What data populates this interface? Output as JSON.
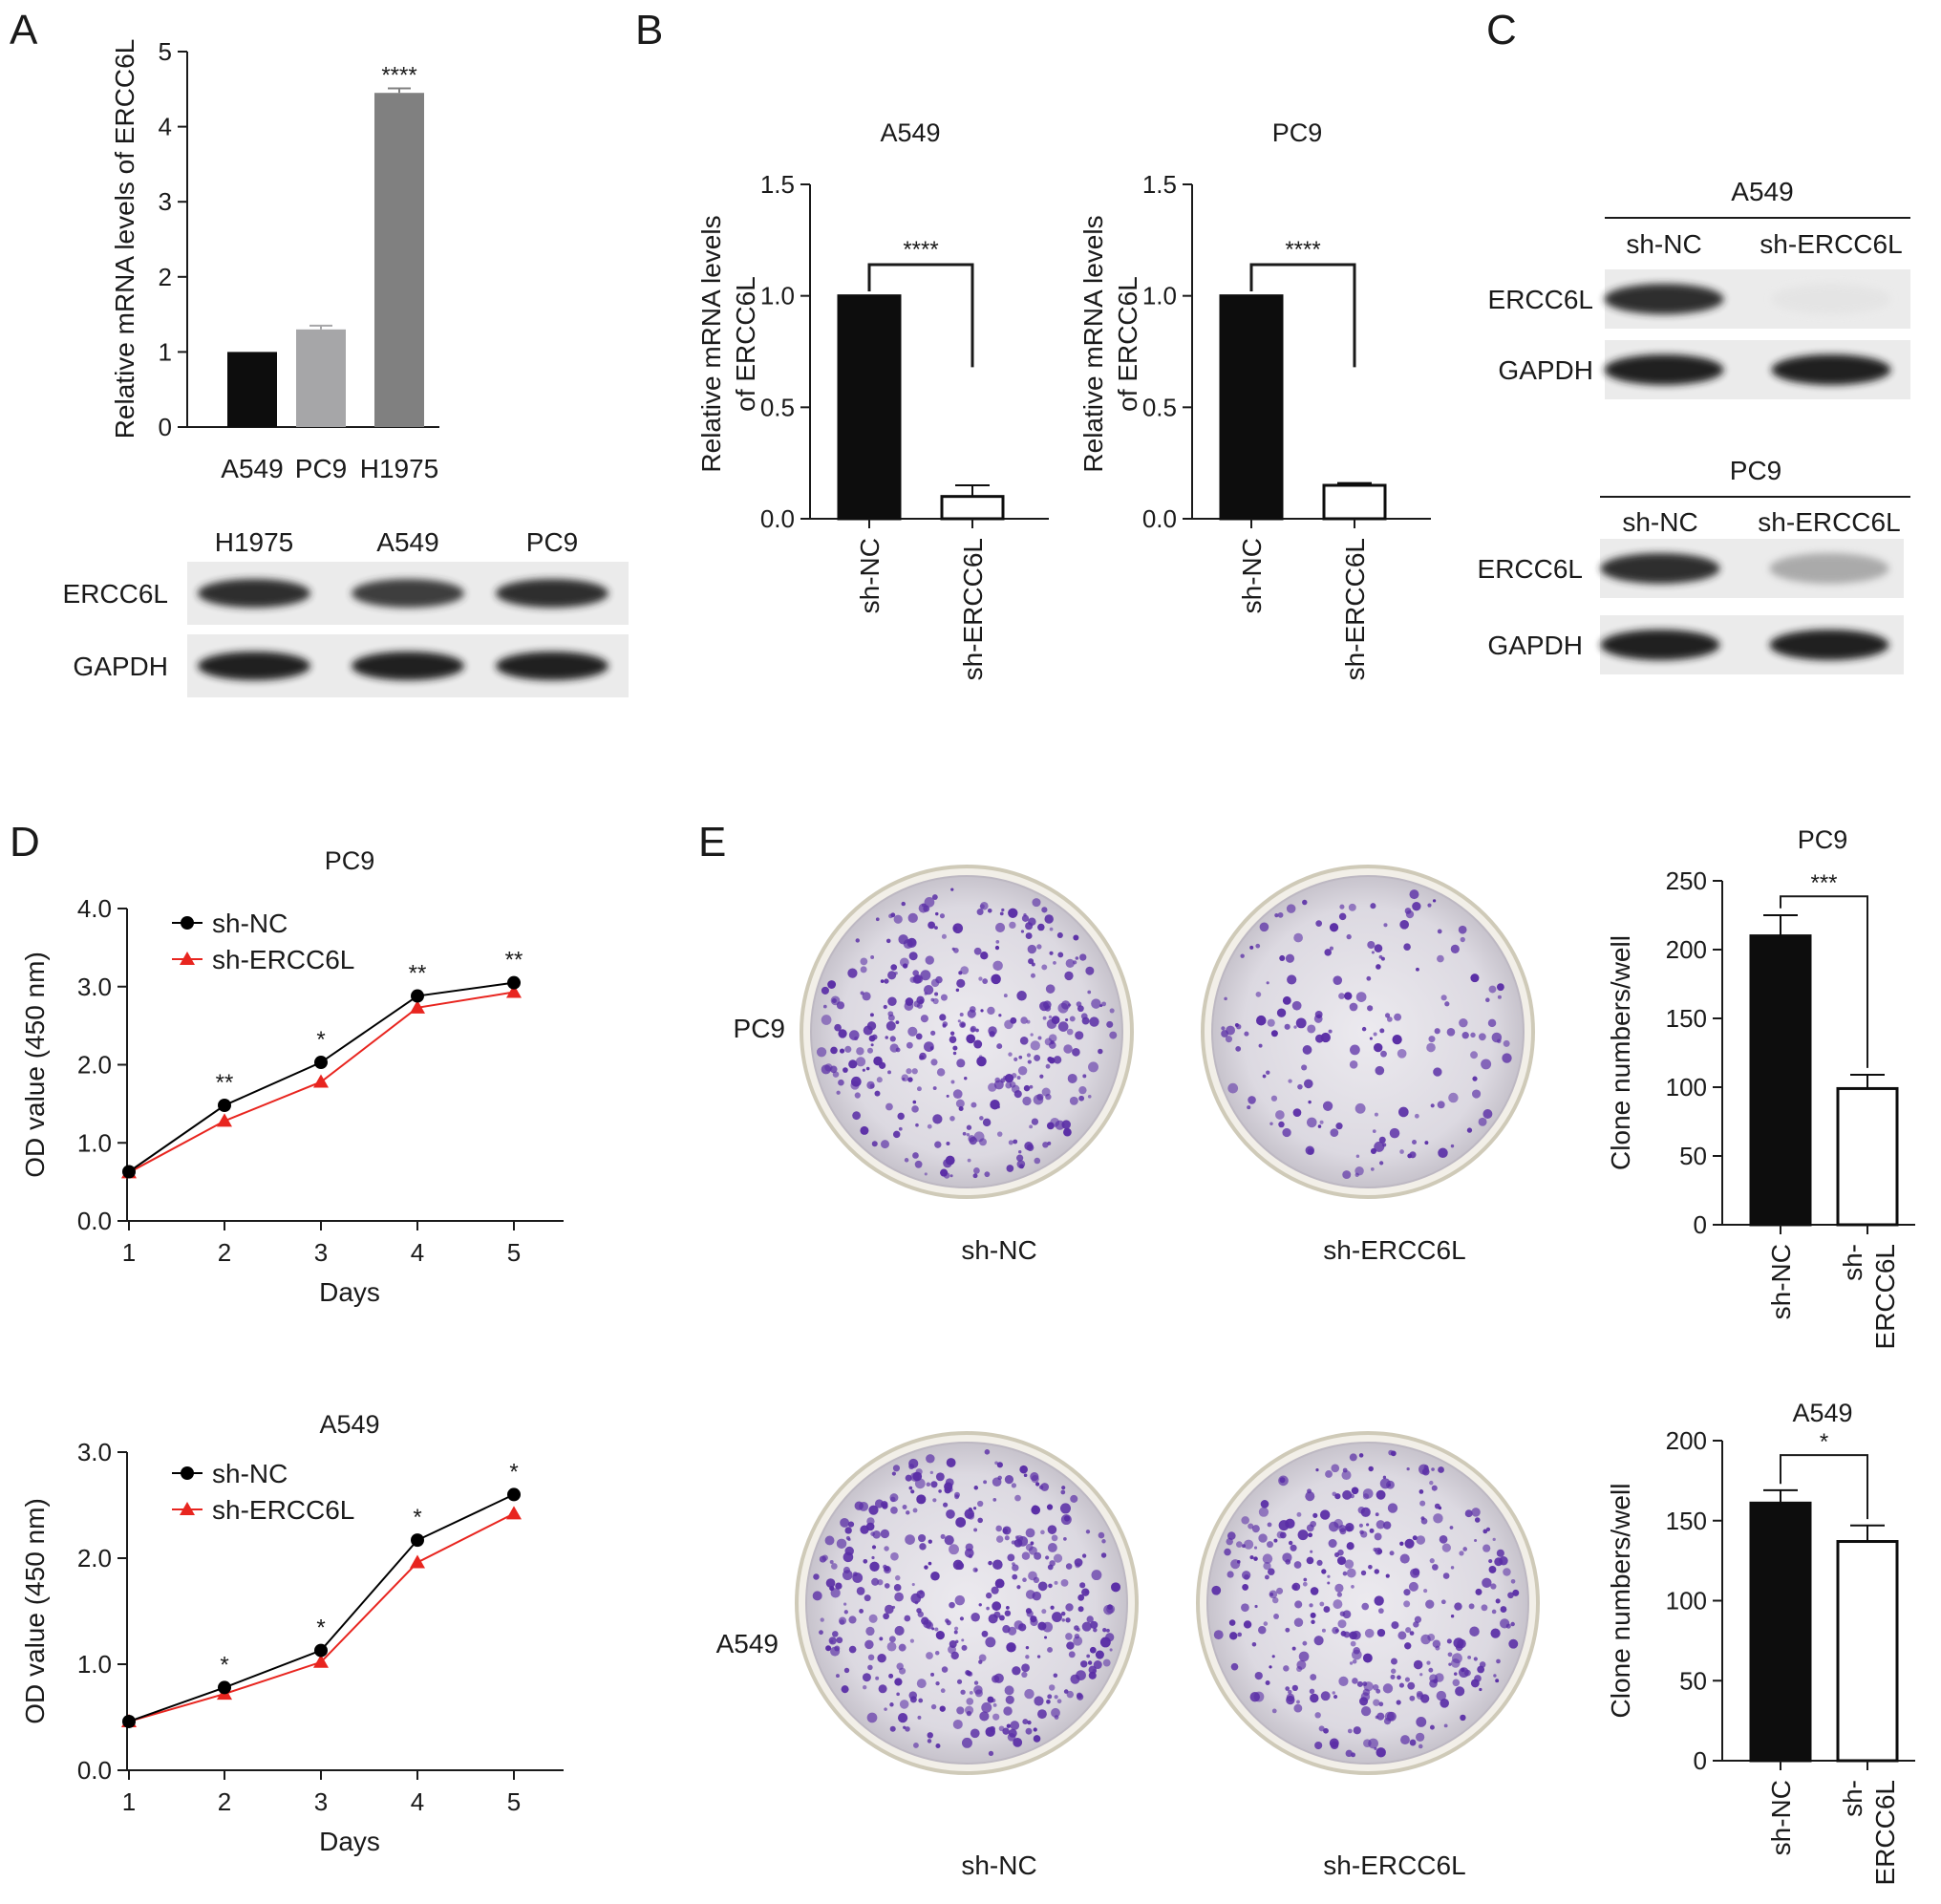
{
  "panel_letters": [
    "A",
    "B",
    "C",
    "D",
    "E"
  ],
  "chart_data": [
    {
      "id": "A-bar",
      "type": "bar",
      "categories": [
        "A549",
        "PC9",
        "H1975"
      ],
      "values": [
        1.0,
        1.3,
        4.45
      ],
      "errors": [
        0,
        0.05,
        0.06
      ],
      "colors": [
        "#0d0d0d",
        "#a6a6a8",
        "#808080"
      ],
      "significance": [
        "",
        "",
        "****"
      ],
      "title": "",
      "xlabel": "",
      "ylabel": "Relative mRNA levels of ERCC6L",
      "ylim": [
        0,
        5
      ],
      "yticks": [
        "0",
        "1",
        "2",
        "3",
        "4",
        "5"
      ]
    },
    {
      "id": "B-A549",
      "type": "bar",
      "categories": [
        "sh-NC",
        "sh-ERCC6L"
      ],
      "values": [
        1.0,
        0.1
      ],
      "errors": [
        0,
        0.05
      ],
      "fills": [
        "#0d0d0d",
        "#ffffff"
      ],
      "significance": "****",
      "title": "A549",
      "ylabel": [
        "Relative mRNA levels",
        "of ERCC6L"
      ],
      "ylim": [
        0,
        1.5
      ],
      "yticks": [
        "0.0",
        "0.5",
        "1.0",
        "1.5"
      ]
    },
    {
      "id": "B-PC9",
      "type": "bar",
      "categories": [
        "sh-NC",
        "sh-ERCC6L"
      ],
      "values": [
        1.0,
        0.15
      ],
      "errors": [
        0,
        0.01
      ],
      "fills": [
        "#0d0d0d",
        "#ffffff"
      ],
      "significance": "****",
      "title": "PC9",
      "ylabel": [
        "Relative mRNA levels",
        "of ERCC6L"
      ],
      "ylim": [
        0,
        1.5
      ],
      "yticks": [
        "0.0",
        "0.5",
        "1.0",
        "1.5"
      ]
    },
    {
      "id": "D-PC9",
      "type": "line",
      "title": "PC9",
      "xlabel": "Days",
      "ylabel": "OD value (450 nm)",
      "x": [
        1,
        2,
        3,
        4,
        5
      ],
      "xticks": [
        "1",
        "2",
        "3",
        "4",
        "5"
      ],
      "ylim": [
        0,
        4.0
      ],
      "yticks": [
        "0.0",
        "1.0",
        "2.0",
        "3.0",
        "4.0"
      ],
      "series": [
        {
          "name": "sh-NC",
          "values": [
            0.63,
            1.48,
            2.03,
            2.88,
            3.05
          ],
          "color": "#000000",
          "marker": "circle"
        },
        {
          "name": "sh-ERCC6L",
          "values": [
            0.62,
            1.28,
            1.78,
            2.73,
            2.93
          ],
          "color": "#e8251f",
          "marker": "triangle"
        }
      ],
      "significance": [
        "",
        "**",
        "*",
        "**",
        "**"
      ],
      "legend": "top-left"
    },
    {
      "id": "D-A549",
      "type": "line",
      "title": "A549",
      "xlabel": "Days",
      "ylabel": "OD value (450 nm)",
      "x": [
        1,
        2,
        3,
        4,
        5
      ],
      "xticks": [
        "1",
        "2",
        "3",
        "4",
        "5"
      ],
      "ylim": [
        0,
        3.0
      ],
      "yticks": [
        "0.0",
        "1.0",
        "2.0",
        "3.0"
      ],
      "series": [
        {
          "name": "sh-NC",
          "values": [
            0.46,
            0.78,
            1.13,
            2.17,
            2.6
          ],
          "color": "#000000",
          "marker": "circle"
        },
        {
          "name": "sh-ERCC6L",
          "values": [
            0.46,
            0.72,
            1.02,
            1.96,
            2.42
          ],
          "color": "#e8251f",
          "marker": "triangle"
        }
      ],
      "significance": [
        "",
        "*",
        "*",
        "*",
        "*"
      ],
      "legend": "top-left"
    },
    {
      "id": "E-PC9",
      "type": "bar",
      "categories": [
        "sh-NC",
        "sh-ERCC6L"
      ],
      "category_lines": [
        [
          "sh-NC"
        ],
        [
          "sh-",
          "ERCC6L"
        ]
      ],
      "values": [
        210,
        99
      ],
      "errors": [
        15,
        10
      ],
      "fills": [
        "#0d0d0d",
        "#ffffff"
      ],
      "significance": "***",
      "title": "PC9",
      "ylabel": "Clone numbers/well",
      "ylim": [
        0,
        250
      ],
      "yticks": [
        "0",
        "50",
        "100",
        "150",
        "200",
        "250"
      ]
    },
    {
      "id": "E-A549",
      "type": "bar",
      "categories": [
        "sh-NC",
        "sh-ERCC6L"
      ],
      "category_lines": [
        [
          "sh-NC"
        ],
        [
          "sh-",
          "ERCC6L"
        ]
      ],
      "values": [
        161,
        137
      ],
      "errors": [
        8,
        10
      ],
      "fills": [
        "#0d0d0d",
        "#ffffff"
      ],
      "significance": "*",
      "title": "A549",
      "ylabel": "Clone numbers/well",
      "ylim": [
        0,
        200
      ],
      "yticks": [
        "0",
        "50",
        "100",
        "150",
        "200"
      ]
    }
  ],
  "western_blots": {
    "A": {
      "lanes": [
        "H1975",
        "A549",
        "PC9"
      ],
      "rows": [
        {
          "label": "ERCC6L",
          "intensity": [
            0.9,
            0.85,
            0.9
          ]
        },
        {
          "label": "GAPDH",
          "intensity": [
            0.95,
            0.95,
            0.95
          ]
        }
      ]
    },
    "C_A549": {
      "title": "A549",
      "lanes": [
        "sh-NC",
        "sh-ERCC6L"
      ],
      "rows": [
        {
          "label": "ERCC6L",
          "intensity": [
            0.9,
            0.05
          ]
        },
        {
          "label": "GAPDH",
          "intensity": [
            0.95,
            0.95
          ]
        }
      ]
    },
    "C_PC9": {
      "title": "PC9",
      "lanes": [
        "sh-NC",
        "sh-ERCC6L"
      ],
      "rows": [
        {
          "label": "ERCC6L",
          "intensity": [
            0.9,
            0.4
          ]
        },
        {
          "label": "GAPDH",
          "intensity": [
            0.95,
            0.95
          ]
        }
      ]
    }
  },
  "colony_images": {
    "row_labels": [
      "PC9",
      "A549"
    ],
    "column_labels": [
      "sh-NC",
      "sh-ERCC6L"
    ],
    "colony_color": "#5a2ea6"
  }
}
